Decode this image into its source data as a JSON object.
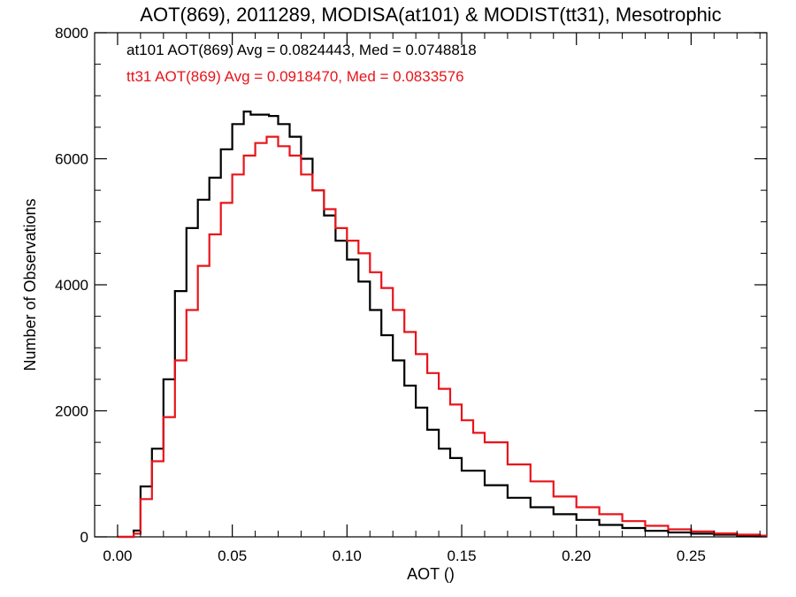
{
  "chart_data": {
    "type": "line",
    "title": "AOT(869), 2011289, MODISA(at101) & MODIST(tt31), Mesotrophic",
    "xlabel": "AOT ()",
    "ylabel": "Number of Observations",
    "xlim": [
      -0.01,
      0.283
    ],
    "ylim": [
      0,
      8000
    ],
    "xticks": [
      0.0,
      0.05,
      0.1,
      0.15,
      0.2,
      0.25
    ],
    "xtick_labels": [
      "0.00",
      "0.05",
      "0.10",
      "0.15",
      "0.20",
      "0.25"
    ],
    "yticks": [
      0,
      2000,
      4000,
      6000,
      8000
    ],
    "ytick_labels": [
      "0",
      "2000",
      "4000",
      "6000",
      "8000"
    ],
    "grid": false,
    "step": true,
    "annotations": [
      {
        "text": "at101 AOT(869) Avg = 0.0824443, Med = 0.0748818",
        "color": "#000000"
      },
      {
        "text": "tt31 AOT(869) Avg = 0.0918470, Med = 0.0833576",
        "color": "#e8141a"
      }
    ],
    "series": [
      {
        "name": "at101",
        "color": "#000000",
        "x": [
          0.0,
          0.005,
          0.007,
          0.01,
          0.015,
          0.02,
          0.025,
          0.03,
          0.035,
          0.04,
          0.045,
          0.05,
          0.055,
          0.058,
          0.062,
          0.066,
          0.07,
          0.075,
          0.08,
          0.085,
          0.09,
          0.095,
          0.1,
          0.105,
          0.11,
          0.115,
          0.12,
          0.125,
          0.13,
          0.135,
          0.14,
          0.145,
          0.15,
          0.16,
          0.17,
          0.18,
          0.19,
          0.2,
          0.21,
          0.22,
          0.23,
          0.24,
          0.25,
          0.26,
          0.27,
          0.28
        ],
        "y": [
          0,
          0,
          100,
          800,
          1400,
          2500,
          3900,
          4900,
          5350,
          5700,
          6150,
          6550,
          6750,
          6700,
          6700,
          6680,
          6550,
          6350,
          6000,
          5500,
          5100,
          4700,
          4400,
          4050,
          3600,
          3200,
          2800,
          2400,
          2050,
          1700,
          1400,
          1250,
          1050,
          820,
          620,
          470,
          360,
          270,
          190,
          140,
          95,
          70,
          50,
          35,
          20,
          10
        ]
      },
      {
        "name": "tt31",
        "color": "#e8141a",
        "x": [
          0.0,
          0.005,
          0.007,
          0.01,
          0.015,
          0.02,
          0.025,
          0.03,
          0.035,
          0.04,
          0.045,
          0.05,
          0.055,
          0.06,
          0.065,
          0.07,
          0.075,
          0.08,
          0.085,
          0.09,
          0.095,
          0.1,
          0.105,
          0.11,
          0.115,
          0.12,
          0.125,
          0.13,
          0.135,
          0.14,
          0.145,
          0.15,
          0.155,
          0.16,
          0.17,
          0.18,
          0.19,
          0.2,
          0.21,
          0.22,
          0.23,
          0.24,
          0.25,
          0.26,
          0.27,
          0.28
        ],
        "y": [
          0,
          0,
          50,
          600,
          1200,
          1900,
          2800,
          3600,
          4300,
          4800,
          5300,
          5750,
          6050,
          6250,
          6350,
          6200,
          6050,
          5750,
          5500,
          5200,
          4900,
          4700,
          4500,
          4200,
          3950,
          3600,
          3250,
          2900,
          2600,
          2350,
          2100,
          1850,
          1650,
          1500,
          1150,
          880,
          640,
          470,
          360,
          250,
          175,
          120,
          85,
          55,
          35,
          20
        ]
      }
    ]
  }
}
